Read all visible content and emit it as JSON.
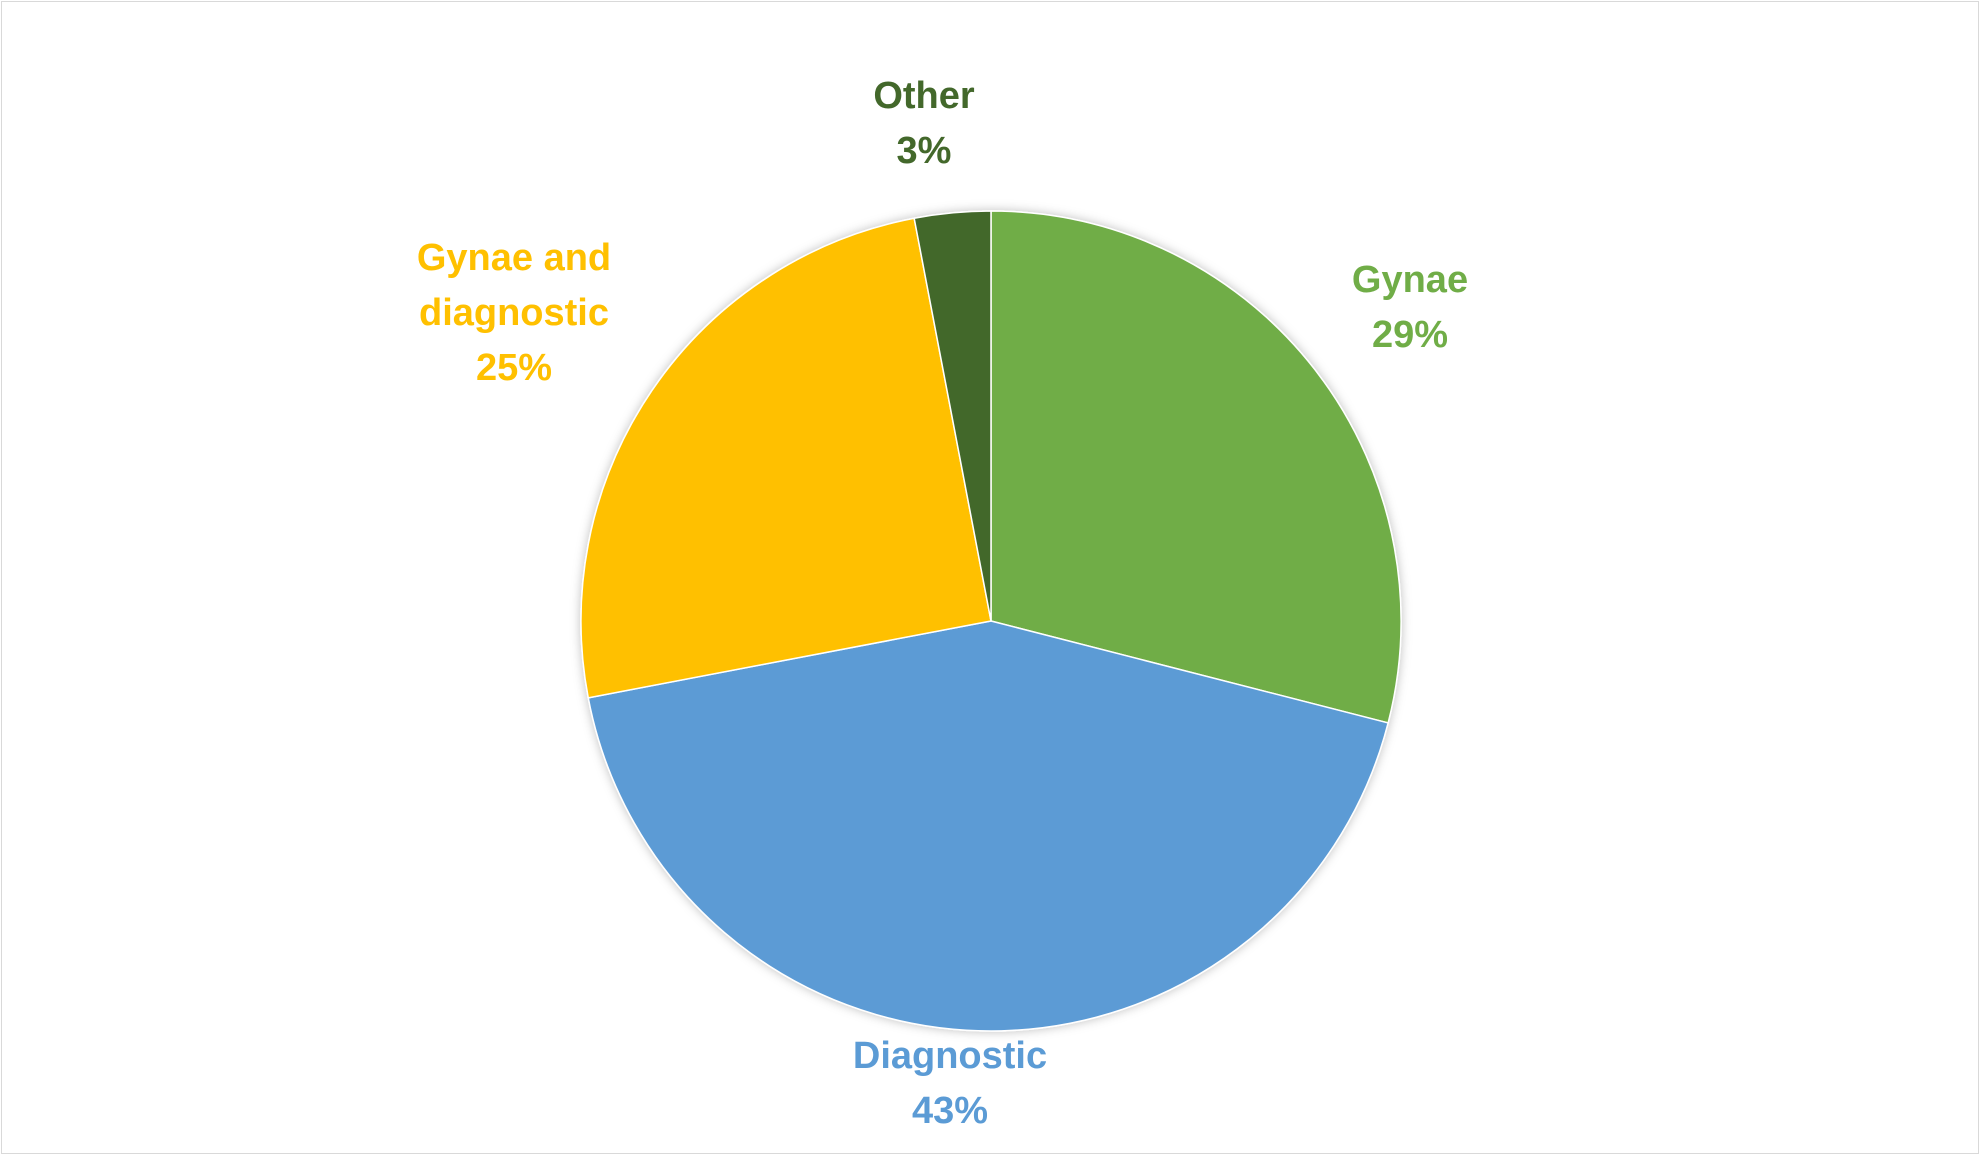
{
  "chart_data": {
    "type": "pie",
    "title": "",
    "start_angle_deg": 0,
    "direction": "clockwise",
    "slices": [
      {
        "name": "Gynae",
        "value": 29,
        "label_lines": [
          "Gynae"
        ],
        "percent_label": "29%",
        "color": "#70ad47"
      },
      {
        "name": "Diagnostic",
        "value": 43,
        "label_lines": [
          "Diagnostic"
        ],
        "percent_label": "43%",
        "color": "#5b9bd5"
      },
      {
        "name": "Gynae and diagnostic",
        "value": 25,
        "label_lines": [
          "Gynae and",
          "diagnostic"
        ],
        "percent_label": "25%",
        "color": "#ffc000"
      },
      {
        "name": "Other",
        "value": 3,
        "label_lines": [
          "Other"
        ],
        "percent_label": "3%",
        "color": "#43682b"
      }
    ],
    "legend": "none",
    "data_labels": "outside, category name and percentage"
  }
}
